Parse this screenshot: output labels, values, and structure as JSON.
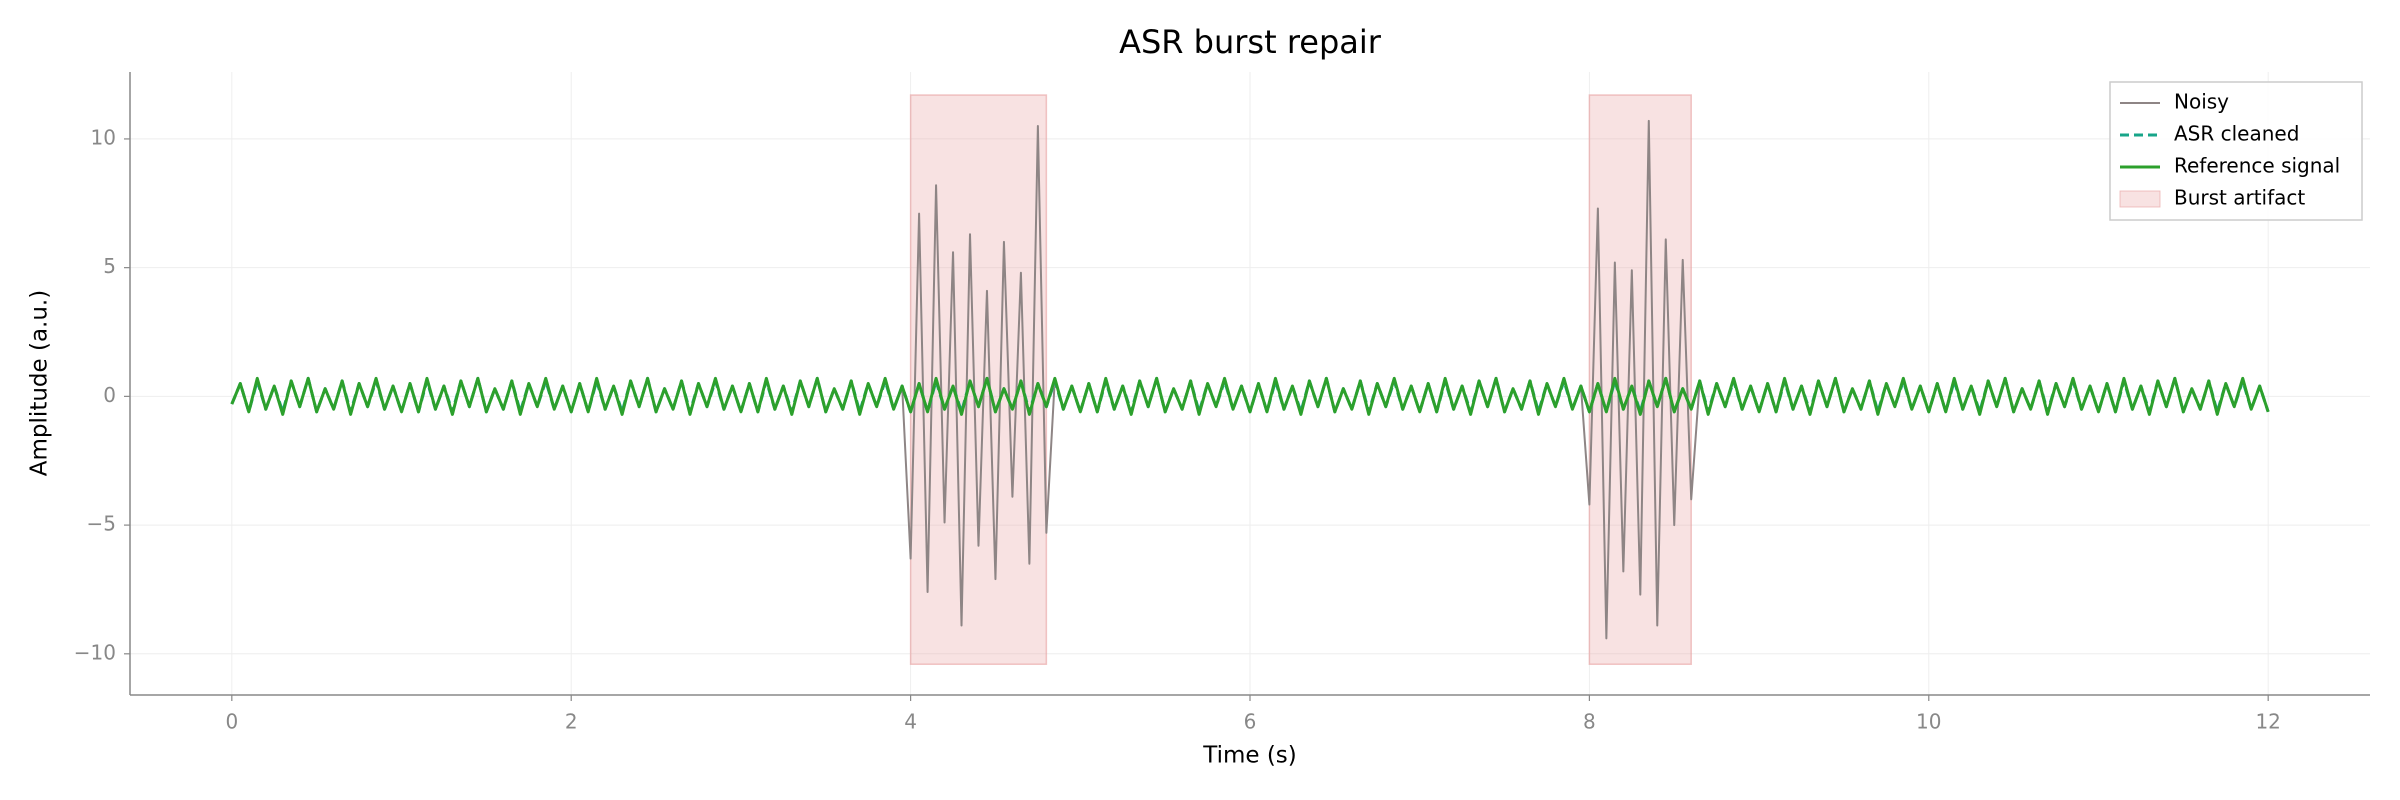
{
  "chart_data": {
    "type": "line",
    "title": "ASR burst repair",
    "xlabel": "Time (s)",
    "ylabel": "Amplitude (a.u.)",
    "xlim": [
      -0.6,
      12.6
    ],
    "xticks": [
      0,
      2,
      4,
      6,
      8,
      10,
      12
    ],
    "ylim": [
      -11.6,
      12.6
    ],
    "yticks": [
      {
        "value": -10,
        "label": "−10"
      },
      {
        "value": -5,
        "label": "−5"
      },
      0,
      5,
      10
    ],
    "grid": true,
    "legend": "upper right",
    "x": [
      0,
      0.05,
      0.1,
      0.15,
      0.2,
      0.25,
      0.3,
      0.35,
      0.4,
      0.45,
      0.5,
      0.55,
      0.6,
      0.65,
      0.7,
      0.75,
      0.8,
      0.85,
      0.9,
      0.95,
      1,
      1.05,
      1.1,
      1.15,
      1.2,
      1.25,
      1.3,
      1.35,
      1.4,
      1.45,
      1.5,
      1.55,
      1.6,
      1.65,
      1.7,
      1.75,
      1.8,
      1.85,
      1.9,
      1.95,
      2,
      2.05,
      2.1,
      2.15,
      2.2,
      2.25,
      2.3,
      2.35,
      2.4,
      2.45,
      2.5,
      2.55,
      2.6,
      2.65,
      2.7,
      2.75,
      2.8,
      2.85,
      2.9,
      2.95,
      3,
      3.05,
      3.1,
      3.15,
      3.2,
      3.25,
      3.3,
      3.35,
      3.4,
      3.45,
      3.5,
      3.55,
      3.6,
      3.65,
      3.7,
      3.75,
      3.8,
      3.85,
      3.9,
      3.95,
      4,
      4.05,
      4.1,
      4.15,
      4.2,
      4.25,
      4.3,
      4.35,
      4.4,
      4.45,
      4.5,
      4.55,
      4.6,
      4.65,
      4.7,
      4.75,
      4.8,
      4.85,
      4.9,
      4.95,
      5,
      5.05,
      5.1,
      5.15,
      5.2,
      5.25,
      5.3,
      5.35,
      5.4,
      5.45,
      5.5,
      5.55,
      5.6,
      5.65,
      5.7,
      5.75,
      5.8,
      5.85,
      5.9,
      5.95,
      6,
      6.05,
      6.1,
      6.15,
      6.2,
      6.25,
      6.3,
      6.35,
      6.4,
      6.45,
      6.5,
      6.55,
      6.6,
      6.65,
      6.7,
      6.75,
      6.8,
      6.85,
      6.9,
      6.95,
      7,
      7.05,
      7.1,
      7.15,
      7.2,
      7.25,
      7.3,
      7.35,
      7.4,
      7.45,
      7.5,
      7.55,
      7.6,
      7.65,
      7.7,
      7.75,
      7.8,
      7.85,
      7.9,
      7.95,
      8,
      8.05,
      8.1,
      8.15,
      8.2,
      8.25,
      8.3,
      8.35,
      8.4,
      8.45,
      8.5,
      8.55,
      8.6,
      8.65,
      8.7,
      8.75,
      8.8,
      8.85,
      8.9,
      8.95,
      9,
      9.05,
      9.1,
      9.15,
      9.2,
      9.25,
      9.3,
      9.35,
      9.4,
      9.45,
      9.5,
      9.55,
      9.6,
      9.65,
      9.7,
      9.75,
      9.8,
      9.85,
      9.9,
      9.95,
      10,
      10.05,
      10.1,
      10.15,
      10.2,
      10.25,
      10.3,
      10.35,
      10.4,
      10.45,
      10.5,
      10.55,
      10.6,
      10.65,
      10.7,
      10.75,
      10.8,
      10.85,
      10.9,
      10.95,
      11,
      11.05,
      11.1,
      11.15,
      11.2,
      11.25,
      11.3,
      11.35,
      11.4,
      11.45,
      11.5,
      11.55,
      11.6,
      11.65,
      11.7,
      11.75,
      11.8,
      11.85,
      11.9,
      11.95,
      12
    ],
    "series": [
      {
        "name": "Noisy",
        "color": "#8e8585",
        "dash": false,
        "values": [
          -0.3,
          0.5,
          -0.6,
          0.7,
          -0.5,
          0.4,
          -0.7,
          0.6,
          -0.4,
          0.7,
          -0.6,
          0.3,
          -0.5,
          0.6,
          -0.7,
          0.5,
          -0.4,
          0.7,
          -0.5,
          0.4,
          -0.6,
          0.5,
          -0.6,
          0.7,
          -0.5,
          0.4,
          -0.7,
          0.6,
          -0.4,
          0.7,
          -0.6,
          0.3,
          -0.5,
          0.6,
          -0.7,
          0.5,
          -0.4,
          0.7,
          -0.5,
          0.4,
          -0.6,
          0.5,
          -0.6,
          0.7,
          -0.5,
          0.4,
          -0.7,
          0.6,
          -0.4,
          0.7,
          -0.6,
          0.3,
          -0.5,
          0.6,
          -0.7,
          0.5,
          -0.4,
          0.7,
          -0.5,
          0.4,
          -0.6,
          0.5,
          -0.6,
          0.7,
          -0.5,
          0.4,
          -0.7,
          0.6,
          -0.4,
          0.7,
          -0.6,
          0.3,
          -0.5,
          0.6,
          -0.7,
          0.5,
          -0.4,
          0.7,
          -0.5,
          0.4,
          -6.3,
          7.1,
          -7.6,
          8.2,
          -4.9,
          5.6,
          -8.9,
          6.3,
          -5.8,
          4.1,
          -7.1,
          6.0,
          -3.9,
          4.8,
          -6.5,
          10.5,
          -5.3,
          0.7,
          -0.5,
          0.4,
          -0.6,
          0.5,
          -0.6,
          0.7,
          -0.5,
          0.4,
          -0.7,
          0.6,
          -0.4,
          0.7,
          -0.6,
          0.3,
          -0.5,
          0.6,
          -0.7,
          0.5,
          -0.4,
          0.7,
          -0.5,
          0.4,
          -0.6,
          0.5,
          -0.6,
          0.7,
          -0.5,
          0.4,
          -0.7,
          0.6,
          -0.4,
          0.7,
          -0.6,
          0.3,
          -0.5,
          0.6,
          -0.7,
          0.5,
          -0.4,
          0.7,
          -0.5,
          0.4,
          -0.6,
          0.5,
          -0.6,
          0.7,
          -0.5,
          0.4,
          -0.7,
          0.6,
          -0.4,
          0.7,
          -0.6,
          0.3,
          -0.5,
          0.6,
          -0.7,
          0.5,
          -0.4,
          0.7,
          -0.5,
          0.4,
          -4.2,
          7.3,
          -9.4,
          5.2,
          -6.8,
          4.9,
          -7.7,
          10.7,
          -8.9,
          6.1,
          -5.0,
          5.3,
          -4.0,
          0.6,
          -0.7,
          0.5,
          -0.4,
          0.7,
          -0.5,
          0.4,
          -0.6,
          0.5,
          -0.6,
          0.7,
          -0.5,
          0.4,
          -0.7,
          0.6,
          -0.4,
          0.7,
          -0.6,
          0.3,
          -0.5,
          0.6,
          -0.7,
          0.5,
          -0.4,
          0.7,
          -0.5,
          0.4,
          -0.6,
          0.5,
          -0.6,
          0.7,
          -0.5,
          0.4,
          -0.7,
          0.6,
          -0.4,
          0.7,
          -0.6,
          0.3,
          -0.5,
          0.6,
          -0.7,
          0.5,
          -0.4,
          0.7,
          -0.5,
          0.4,
          -0.6,
          0.5,
          -0.6,
          0.7,
          -0.5,
          0.4,
          -0.7,
          0.6,
          -0.4,
          0.7,
          -0.6,
          0.3,
          -0.5,
          0.6,
          -0.7,
          0.5,
          -0.4,
          0.7,
          -0.5,
          0.4,
          -0.6
        ]
      },
      {
        "name": "ASR cleaned",
        "color": "#17a589",
        "dash": true,
        "values": [
          -0.3,
          0.5,
          -0.6,
          0.6,
          -0.5,
          0.4,
          -0.6,
          0.6,
          -0.4,
          0.7,
          -0.6,
          0.3,
          -0.5,
          0.6,
          -0.6,
          0.5,
          -0.4,
          0.6,
          -0.5,
          0.4,
          -0.6,
          0.5,
          -0.6,
          0.6,
          -0.5,
          0.4,
          -0.6,
          0.6,
          -0.4,
          0.7,
          -0.6,
          0.3,
          -0.5,
          0.6,
          -0.6,
          0.5,
          -0.4,
          0.6,
          -0.5,
          0.4,
          -0.6,
          0.5,
          -0.6,
          0.6,
          -0.5,
          0.4,
          -0.6,
          0.6,
          -0.4,
          0.7,
          -0.6,
          0.3,
          -0.5,
          0.6,
          -0.6,
          0.5,
          -0.4,
          0.6,
          -0.5,
          0.4,
          -0.6,
          0.5,
          -0.6,
          0.6,
          -0.5,
          0.4,
          -0.6,
          0.6,
          -0.4,
          0.7,
          -0.6,
          0.3,
          -0.5,
          0.6,
          -0.6,
          0.5,
          -0.4,
          0.6,
          -0.5,
          0.4,
          -0.6,
          0.5,
          -0.6,
          0.6,
          -0.5,
          0.4,
          -0.6,
          0.6,
          -0.4,
          0.7,
          -0.6,
          0.3,
          -0.5,
          0.6,
          -0.6,
          0.5,
          -0.4,
          0.6,
          -0.5,
          0.4,
          -0.6,
          0.5,
          -0.6,
          0.6,
          -0.5,
          0.4,
          -0.6,
          0.6,
          -0.4,
          0.7,
          -0.6,
          0.3,
          -0.5,
          0.6,
          -0.6,
          0.5,
          -0.4,
          0.6,
          -0.5,
          0.4,
          -0.6,
          0.5,
          -0.6,
          0.6,
          -0.5,
          0.4,
          -0.6,
          0.6,
          -0.4,
          0.7,
          -0.6,
          0.3,
          -0.5,
          0.6,
          -0.6,
          0.5,
          -0.4,
          0.6,
          -0.5,
          0.4,
          -0.6,
          0.5,
          -0.6,
          0.6,
          -0.5,
          0.4,
          -0.6,
          0.6,
          -0.4,
          0.7,
          -0.6,
          0.3,
          -0.5,
          0.6,
          -0.6,
          0.5,
          -0.4,
          0.6,
          -0.5,
          0.4,
          -0.6,
          0.5,
          -0.6,
          0.6,
          -0.5,
          0.4,
          -0.6,
          0.6,
          -0.4,
          0.7,
          -0.6,
          0.3,
          -0.5,
          0.6,
          -0.6,
          0.5,
          -0.4,
          0.6,
          -0.5,
          0.4,
          -0.6,
          0.5,
          -0.6,
          0.6,
          -0.5,
          0.4,
          -0.6,
          0.6,
          -0.4,
          0.7,
          -0.6,
          0.3,
          -0.5,
          0.6,
          -0.6,
          0.5,
          -0.4,
          0.6,
          -0.5,
          0.4,
          -0.6,
          0.5,
          -0.6,
          0.6,
          -0.5,
          0.4,
          -0.6,
          0.6,
          -0.4,
          0.7,
          -0.6,
          0.3,
          -0.5,
          0.6,
          -0.6,
          0.5,
          -0.4,
          0.6,
          -0.5,
          0.4,
          -0.6,
          0.5,
          -0.6,
          0.6,
          -0.5,
          0.4,
          -0.6,
          0.6,
          -0.4,
          0.7,
          -0.6,
          0.3,
          -0.5,
          0.6,
          -0.6,
          0.5,
          -0.4,
          0.6,
          -0.5,
          0.4,
          -0.6
        ]
      },
      {
        "name": "Reference signal",
        "color": "#2ca02c",
        "dash": false,
        "values": [
          -0.3,
          0.5,
          -0.6,
          0.7,
          -0.5,
          0.4,
          -0.7,
          0.6,
          -0.4,
          0.7,
          -0.6,
          0.3,
          -0.5,
          0.6,
          -0.7,
          0.5,
          -0.4,
          0.7,
          -0.5,
          0.4,
          -0.6,
          0.5,
          -0.6,
          0.7,
          -0.5,
          0.4,
          -0.7,
          0.6,
          -0.4,
          0.7,
          -0.6,
          0.3,
          -0.5,
          0.6,
          -0.7,
          0.5,
          -0.4,
          0.7,
          -0.5,
          0.4,
          -0.6,
          0.5,
          -0.6,
          0.7,
          -0.5,
          0.4,
          -0.7,
          0.6,
          -0.4,
          0.7,
          -0.6,
          0.3,
          -0.5,
          0.6,
          -0.7,
          0.5,
          -0.4,
          0.7,
          -0.5,
          0.4,
          -0.6,
          0.5,
          -0.6,
          0.7,
          -0.5,
          0.4,
          -0.7,
          0.6,
          -0.4,
          0.7,
          -0.6,
          0.3,
          -0.5,
          0.6,
          -0.7,
          0.5,
          -0.4,
          0.7,
          -0.5,
          0.4,
          -0.6,
          0.5,
          -0.6,
          0.7,
          -0.5,
          0.4,
          -0.7,
          0.6,
          -0.4,
          0.7,
          -0.6,
          0.3,
          -0.5,
          0.6,
          -0.7,
          0.5,
          -0.4,
          0.7,
          -0.5,
          0.4,
          -0.6,
          0.5,
          -0.6,
          0.7,
          -0.5,
          0.4,
          -0.7,
          0.6,
          -0.4,
          0.7,
          -0.6,
          0.3,
          -0.5,
          0.6,
          -0.7,
          0.5,
          -0.4,
          0.7,
          -0.5,
          0.4,
          -0.6,
          0.5,
          -0.6,
          0.7,
          -0.5,
          0.4,
          -0.7,
          0.6,
          -0.4,
          0.7,
          -0.6,
          0.3,
          -0.5,
          0.6,
          -0.7,
          0.5,
          -0.4,
          0.7,
          -0.5,
          0.4,
          -0.6,
          0.5,
          -0.6,
          0.7,
          -0.5,
          0.4,
          -0.7,
          0.6,
          -0.4,
          0.7,
          -0.6,
          0.3,
          -0.5,
          0.6,
          -0.7,
          0.5,
          -0.4,
          0.7,
          -0.5,
          0.4,
          -0.6,
          0.5,
          -0.6,
          0.7,
          -0.5,
          0.4,
          -0.7,
          0.6,
          -0.4,
          0.7,
          -0.6,
          0.3,
          -0.5,
          0.6,
          -0.7,
          0.5,
          -0.4,
          0.7,
          -0.5,
          0.4,
          -0.6,
          0.5,
          -0.6,
          0.7,
          -0.5,
          0.4,
          -0.7,
          0.6,
          -0.4,
          0.7,
          -0.6,
          0.3,
          -0.5,
          0.6,
          -0.7,
          0.5,
          -0.4,
          0.7,
          -0.5,
          0.4,
          -0.6,
          0.5,
          -0.6,
          0.7,
          -0.5,
          0.4,
          -0.7,
          0.6,
          -0.4,
          0.7,
          -0.6,
          0.3,
          -0.5,
          0.6,
          -0.7,
          0.5,
          -0.4,
          0.7,
          -0.5,
          0.4,
          -0.6,
          0.5,
          -0.6,
          0.7,
          -0.5,
          0.4,
          -0.7,
          0.6,
          -0.4,
          0.7,
          -0.6,
          0.3,
          -0.5,
          0.6,
          -0.7,
          0.5,
          -0.4,
          0.7,
          -0.5,
          0.4,
          -0.6
        ]
      }
    ],
    "burst_label": "Burst artifact",
    "burst_color": "#e8a0a0",
    "bursts": [
      [
        4,
        4.8
      ],
      [
        8,
        8.6
      ]
    ]
  }
}
